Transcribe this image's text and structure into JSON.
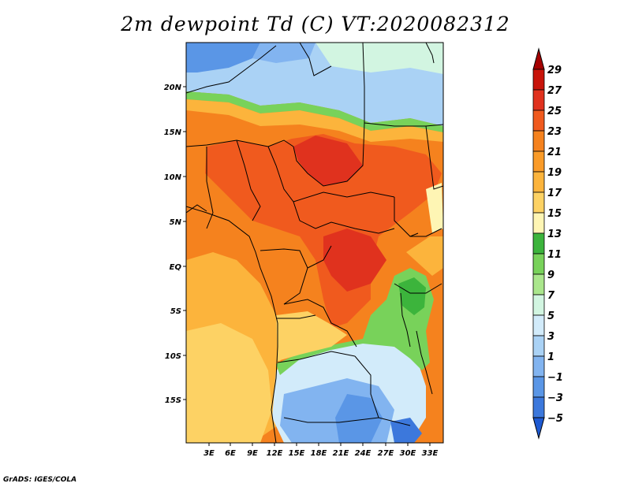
{
  "title": "2m dewpoint Td (C) VT:2020082312",
  "credit": "GrADS: IGES/COLA",
  "lat_labels": [
    "20N",
    "15N",
    "10N",
    "5N",
    "EQ",
    "5S",
    "10S",
    "15S"
  ],
  "lon_labels": [
    "3E",
    "6E",
    "9E",
    "12E",
    "15E",
    "18E",
    "21E",
    "24E",
    "27E",
    "30E",
    "33E"
  ],
  "colorbar": {
    "labels": [
      "29",
      "27",
      "25",
      "23",
      "21",
      "19",
      "17",
      "15",
      "13",
      "11",
      "9",
      "7",
      "5",
      "3",
      "1",
      "−1",
      "−3",
      "−5"
    ],
    "colors_top_to_bottom": [
      "#a50000",
      "#c8140a",
      "#e0321e",
      "#f05a1e",
      "#f5821e",
      "#fa9b28",
      "#fcb43c",
      "#fdd264",
      "#fef5b4",
      "#3cb43c",
      "#78d25a",
      "#aae68c",
      "#d2f5e1",
      "#d2ebfa",
      "#aad2f5",
      "#82b4f0",
      "#5a96e6",
      "#3c78dc",
      "#1e5ad2"
    ]
  },
  "colors": {
    "land_hot": "#f05a1e",
    "land_warm": "#f5821e",
    "land_mild": "#fcb43c",
    "sea_mild": "#fdd264",
    "desert_blue": "#5a96e6",
    "green": "#78d25a"
  }
}
